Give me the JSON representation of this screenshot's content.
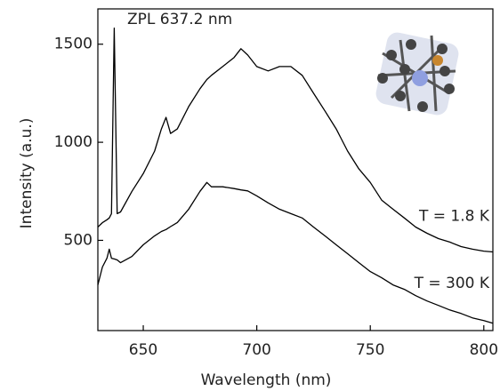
{
  "chart_data": {
    "type": "line",
    "x_label": "Wavelength (nm)",
    "y_label": "Intensity (a.u.)",
    "annotation": "ZPL 637.2 nm",
    "x": [
      630,
      632,
      634,
      635,
      636,
      637.2,
      638.5,
      640,
      645,
      650,
      655,
      658,
      660,
      662,
      665,
      670,
      675,
      678,
      680,
      685,
      690,
      693,
      696,
      700,
      705,
      710,
      715,
      720,
      725,
      730,
      735,
      740,
      745,
      750,
      755,
      760,
      765,
      770,
      775,
      780,
      785,
      790,
      795,
      800,
      804
    ],
    "series": [
      {
        "name": "T = 1.8 K",
        "color": "#000000",
        "values": [
          568,
          590,
          605,
          614,
          636,
          1582,
          636,
          645,
          750,
          840,
          955,
          1068,
          1127,
          1045,
          1068,
          1182,
          1273,
          1320,
          1341,
          1386,
          1432,
          1477,
          1445,
          1386,
          1364,
          1386,
          1386,
          1341,
          1250,
          1160,
          1068,
          955,
          864,
          795,
          705,
          659,
          614,
          568,
          536,
          509,
          491,
          468,
          455,
          445,
          441
        ]
      },
      {
        "name": "T = 300 K",
        "color": "#000000",
        "values": [
          273,
          364,
          409,
          455,
          409,
          405,
          400,
          386,
          418,
          477,
          523,
          545,
          555,
          570,
          591,
          659,
          750,
          795,
          773,
          773,
          764,
          757,
          752,
          727,
          691,
          659,
          636,
          614,
          568,
          523,
          477,
          432,
          386,
          341,
          309,
          273,
          250,
          218,
          191,
          168,
          145,
          127,
          105,
          91,
          77
        ]
      }
    ],
    "xlim": [
      630,
      804
    ],
    "ylim": [
      40,
      1680
    ],
    "xticks": [
      650,
      700,
      750,
      800
    ],
    "yticks": [
      500,
      1000,
      1500
    ]
  }
}
